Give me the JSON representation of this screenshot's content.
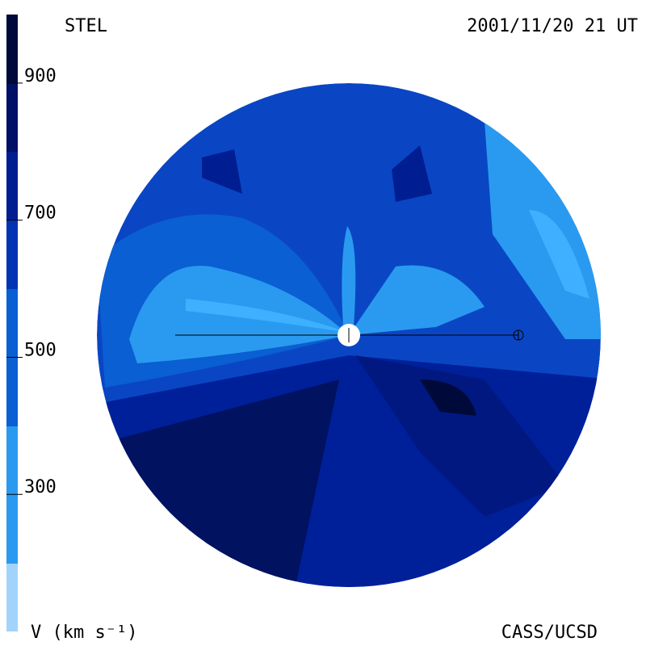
{
  "header": {
    "left": "STEL",
    "right": "2001/11/20 21 UT"
  },
  "footer": {
    "left": "V (km s⁻¹)",
    "right": "CASS/UCSD"
  },
  "colorbar": {
    "range": [
      100,
      1000
    ],
    "ticks": [
      300,
      500,
      700,
      900
    ]
  }
}
